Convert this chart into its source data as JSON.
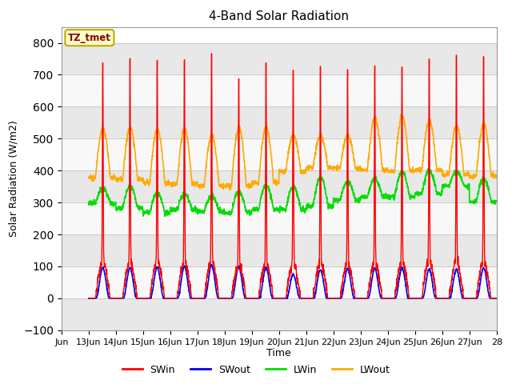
{
  "title": "4-Band Solar Radiation",
  "xlabel": "Time",
  "ylabel": "Solar Radiation (W/m2)",
  "ylim": [
    -100,
    850
  ],
  "yticks": [
    -100,
    0,
    100,
    200,
    300,
    400,
    500,
    600,
    700,
    800
  ],
  "x_tick_labels": [
    "Jun",
    "13Jun",
    "14Jun",
    "15Jun",
    "16Jun",
    "17Jun",
    "18Jun",
    "19Jun",
    "20Jun",
    "21Jun",
    "22Jun",
    "23Jun",
    "24Jun",
    "25Jun",
    "26Jun",
    "27Jun",
    "28"
  ],
  "colors": {
    "SWin": "#ff0000",
    "SWout": "#0000ee",
    "LWin": "#00dd00",
    "LWout": "#ffaa00"
  },
  "legend_label": "TZ_tmet",
  "legend_box_color": "#ffffcc",
  "legend_box_edge": "#bbaa00",
  "background_color": "#ffffff",
  "plot_bg_color": "#ffffff",
  "grid_color_light": "#dddddd",
  "grid_color_dark": "#bbbbbb",
  "SWin_peaks": [
    740,
    742,
    745,
    748,
    762,
    697,
    722,
    726,
    724,
    720,
    723,
    728,
    762,
    762,
    752
  ],
  "SWout_peaks": [
    95,
    95,
    98,
    100,
    103,
    98,
    95,
    75,
    90,
    92,
    93,
    95,
    90,
    90,
    95
  ],
  "LWin_base": [
    298,
    282,
    268,
    278,
    272,
    268,
    278,
    278,
    288,
    308,
    318,
    318,
    328,
    352,
    302
  ],
  "LWin_peak": [
    345,
    350,
    330,
    325,
    320,
    335,
    355,
    350,
    380,
    365,
    375,
    395,
    400,
    395,
    375
  ],
  "LWout_night": [
    378,
    372,
    362,
    358,
    352,
    352,
    362,
    398,
    408,
    408,
    402,
    398,
    402,
    388,
    382
  ],
  "LWout_peak": [
    530,
    535,
    530,
    530,
    510,
    535,
    535,
    510,
    510,
    510,
    565,
    570,
    555,
    540,
    545
  ]
}
